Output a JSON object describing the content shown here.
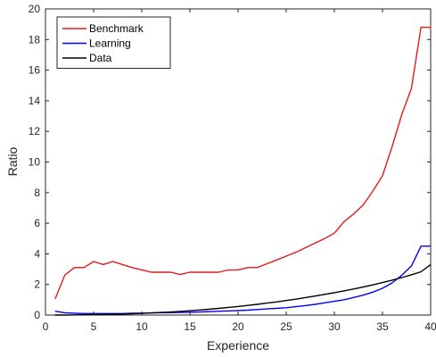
{
  "chart_data": {
    "type": "line",
    "xlabel": "Experience",
    "ylabel": "Ratio",
    "xlim": [
      0,
      40
    ],
    "ylim": [
      0,
      20
    ],
    "xticks": [
      0,
      5,
      10,
      15,
      20,
      25,
      30,
      35,
      40
    ],
    "yticks": [
      0,
      2,
      4,
      6,
      8,
      10,
      12,
      14,
      16,
      18,
      20
    ],
    "grid": false,
    "legend_position": "top-left",
    "series": [
      {
        "name": "Benchmark",
        "color": "#e41a1c",
        "x": [
          1,
          2,
          3,
          4,
          5,
          6,
          7,
          8,
          9,
          10,
          11,
          12,
          13,
          14,
          15,
          16,
          17,
          18,
          19,
          20,
          21,
          22,
          23,
          24,
          25,
          26,
          27,
          28,
          29,
          30,
          31,
          32,
          33,
          34,
          35,
          36,
          37,
          38,
          39,
          40
        ],
        "y": [
          1.05,
          2.6,
          3.1,
          3.1,
          3.5,
          3.3,
          3.5,
          3.3,
          3.1,
          2.95,
          2.8,
          2.8,
          2.8,
          2.65,
          2.8,
          2.8,
          2.8,
          2.8,
          2.95,
          2.95,
          3.1,
          3.1,
          3.35,
          3.6,
          3.85,
          4.1,
          4.4,
          4.7,
          5.0,
          5.35,
          6.1,
          6.6,
          7.2,
          8.1,
          9.1,
          11.0,
          13.1,
          14.8,
          18.8,
          18.8
        ]
      },
      {
        "name": "Learning",
        "color": "#0000ff",
        "x": [
          1,
          2,
          3,
          4,
          5,
          6,
          7,
          8,
          9,
          10,
          11,
          12,
          13,
          14,
          15,
          16,
          17,
          18,
          19,
          20,
          21,
          22,
          23,
          24,
          25,
          26,
          27,
          28,
          29,
          30,
          31,
          32,
          33,
          34,
          35,
          36,
          37,
          38,
          39,
          40
        ],
        "y": [
          0.25,
          0.15,
          0.12,
          0.1,
          0.1,
          0.1,
          0.1,
          0.1,
          0.12,
          0.12,
          0.14,
          0.15,
          0.16,
          0.17,
          0.18,
          0.2,
          0.22,
          0.25,
          0.27,
          0.3,
          0.32,
          0.36,
          0.4,
          0.44,
          0.48,
          0.55,
          0.62,
          0.7,
          0.8,
          0.9,
          1.0,
          1.15,
          1.3,
          1.5,
          1.75,
          2.1,
          2.6,
          3.2,
          4.5,
          4.5
        ]
      },
      {
        "name": "Data",
        "color": "#000000",
        "x": [
          1,
          2,
          3,
          4,
          5,
          6,
          7,
          8,
          9,
          10,
          11,
          12,
          13,
          14,
          15,
          16,
          17,
          18,
          19,
          20,
          21,
          22,
          23,
          24,
          25,
          26,
          27,
          28,
          29,
          30,
          31,
          32,
          33,
          34,
          35,
          36,
          37,
          38,
          39,
          40
        ],
        "y": [
          0.0,
          0.0,
          0.01,
          0.02,
          0.03,
          0.04,
          0.05,
          0.07,
          0.09,
          0.11,
          0.14,
          0.17,
          0.2,
          0.24,
          0.28,
          0.33,
          0.38,
          0.44,
          0.5,
          0.56,
          0.63,
          0.7,
          0.78,
          0.86,
          0.95,
          1.04,
          1.14,
          1.24,
          1.35,
          1.46,
          1.58,
          1.7,
          1.83,
          1.97,
          2.12,
          2.28,
          2.45,
          2.63,
          2.83,
          3.3
        ]
      }
    ]
  }
}
